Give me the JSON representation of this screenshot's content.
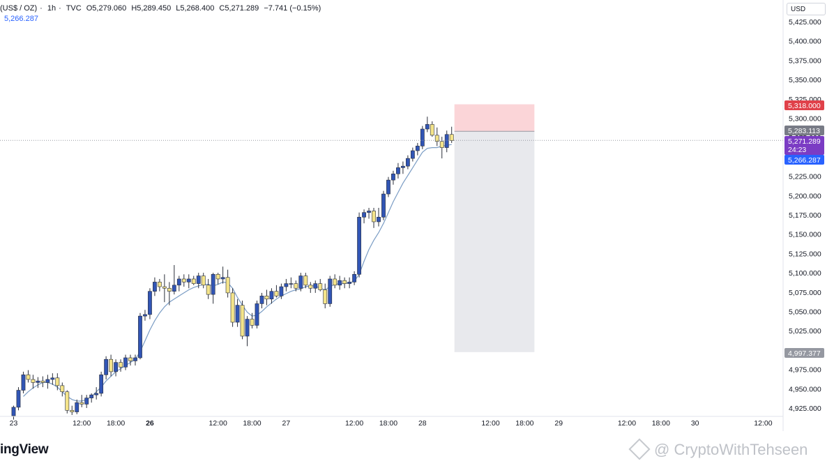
{
  "header": {
    "symbol": "(US$ / OZ)",
    "interval": "1h",
    "source": "TVC",
    "open": "O5,279.060",
    "high": "H5,289.450",
    "low": "L5,268.400",
    "close": "C5,271.289",
    "change": "−7.741 (−0.15%)",
    "ma_value": "5,266.287"
  },
  "currency_button": "USD",
  "brand": "ingView",
  "watermark": "@ CryptoWithTehseen",
  "price_labels": {
    "stop": "5,318.000",
    "entry": "5,283.113",
    "current": "5,271.289",
    "countdown": "24:23",
    "ma": "5,266.287",
    "target": "4,997.377"
  },
  "colors": {
    "up": "#3155b5",
    "down": "#f4e48a",
    "wick": "#2a2e39",
    "ma_line": "#7a9cc4",
    "stop_zone": "#fbd5d8",
    "target_zone": "#e8e9ed",
    "stop_label": "#e0414a",
    "entry_label": "#787b86",
    "current_label": "#7b3cc4",
    "ma_label": "#2962ff",
    "target_label": "#9598a1"
  },
  "chart_data": {
    "type": "candlestick",
    "y_axis": {
      "ticks": [
        4925,
        4950,
        4975,
        5000,
        5025,
        5050,
        5075,
        5100,
        5125,
        5150,
        5175,
        5200,
        5225,
        5250,
        5275,
        5300,
        5325,
        5350,
        5375,
        5400,
        5425
      ],
      "tick_labels": [
        "4,925.000",
        "4,950.000",
        "4,975.000",
        "5,000.000",
        "5,025.000",
        "5,050.000",
        "5,075.000",
        "5,100.000",
        "5,125.000",
        "5,150.000",
        "5,175.000",
        "5,200.000",
        "5,225.000",
        "5,250.000",
        "5,275.000",
        "5,300.000",
        "5,325.000",
        "5,350.000",
        "5,375.000",
        "5,400.000",
        "5,425.000"
      ],
      "range": [
        4912,
        5430
      ]
    },
    "x_axis": {
      "labels": [
        "23",
        "12:00",
        "18:00",
        "26",
        "12:00",
        "18:00",
        "27",
        "12:00",
        "18:00",
        "28",
        "12:00",
        "18:00",
        "29",
        "12:00",
        "18:00",
        "30",
        "12:00"
      ],
      "bold": [
        false,
        false,
        false,
        true,
        false,
        false,
        false,
        false,
        false,
        false,
        false,
        false,
        false,
        false,
        false,
        false,
        false
      ],
      "label_bar": [
        0,
        14,
        21,
        28,
        42,
        49,
        56,
        70,
        77,
        84,
        98,
        105,
        112,
        126,
        133,
        140,
        154
      ]
    },
    "candles": [
      [
        4915,
        4928,
        4910,
        4926
      ],
      [
        4926,
        4952,
        4922,
        4948
      ],
      [
        4948,
        4972,
        4944,
        4968
      ],
      [
        4968,
        4974,
        4958,
        4962
      ],
      [
        4962,
        4968,
        4950,
        4958
      ],
      [
        4958,
        4965,
        4951,
        4960
      ],
      [
        4960,
        4966,
        4952,
        4958
      ],
      [
        4958,
        4968,
        4950,
        4962
      ],
      [
        4962,
        4970,
        4955,
        4964
      ],
      [
        4964,
        4970,
        4948,
        4954
      ],
      [
        4954,
        4958,
        4940,
        4946
      ],
      [
        4946,
        4948,
        4918,
        4922
      ],
      [
        4922,
        4928,
        4916,
        4920
      ],
      [
        4920,
        4936,
        4917,
        4932
      ],
      [
        4932,
        4942,
        4926,
        4930
      ],
      [
        4930,
        4942,
        4925,
        4938
      ],
      [
        4938,
        4944,
        4932,
        4942
      ],
      [
        4942,
        4952,
        4936,
        4944
      ],
      [
        4944,
        4972,
        4940,
        4968
      ],
      [
        4968,
        4992,
        4962,
        4988
      ],
      [
        4988,
        4994,
        4966,
        4972
      ],
      [
        4972,
        4988,
        4966,
        4984
      ],
      [
        4984,
        4988,
        4972,
        4978
      ],
      [
        4978,
        4994,
        4974,
        4990
      ],
      [
        4990,
        4994,
        4980,
        4986
      ],
      [
        4986,
        4994,
        4980,
        4990
      ],
      [
        4990,
        5048,
        4988,
        5044
      ],
      [
        5044,
        5052,
        5038,
        5046
      ],
      [
        5046,
        5080,
        5040,
        5076
      ],
      [
        5076,
        5094,
        5070,
        5088
      ],
      [
        5088,
        5092,
        5076,
        5082
      ],
      [
        5082,
        5098,
        5062,
        5080
      ],
      [
        5080,
        5088,
        5058,
        5076
      ],
      [
        5076,
        5110,
        5072,
        5084
      ],
      [
        5084,
        5096,
        5076,
        5092
      ],
      [
        5092,
        5098,
        5082,
        5088
      ],
      [
        5088,
        5098,
        5080,
        5092
      ],
      [
        5092,
        5096,
        5084,
        5086
      ],
      [
        5086,
        5100,
        5080,
        5096
      ],
      [
        5096,
        5100,
        5080,
        5084
      ],
      [
        5084,
        5092,
        5066,
        5072
      ],
      [
        5072,
        5100,
        5060,
        5098
      ],
      [
        5098,
        5100,
        5085,
        5092
      ],
      [
        5092,
        5108,
        5086,
        5094
      ],
      [
        5094,
        5104,
        5068,
        5074
      ],
      [
        5074,
        5080,
        5030,
        5036
      ],
      [
        5036,
        5066,
        5030,
        5058
      ],
      [
        5058,
        5064,
        5014,
        5018
      ],
      [
        5018,
        5044,
        5005,
        5040
      ],
      [
        5040,
        5048,
        5028,
        5032
      ],
      [
        5032,
        5064,
        5028,
        5060
      ],
      [
        5060,
        5074,
        5054,
        5070
      ],
      [
        5070,
        5078,
        5058,
        5066
      ],
      [
        5066,
        5080,
        5060,
        5076
      ],
      [
        5076,
        5084,
        5068,
        5070
      ],
      [
        5070,
        5086,
        5066,
        5082
      ],
      [
        5082,
        5092,
        5076,
        5086
      ],
      [
        5086,
        5094,
        5080,
        5086
      ],
      [
        5086,
        5090,
        5076,
        5080
      ],
      [
        5080,
        5100,
        5076,
        5096
      ],
      [
        5096,
        5100,
        5080,
        5084
      ],
      [
        5084,
        5088,
        5074,
        5080
      ],
      [
        5080,
        5090,
        5074,
        5086
      ],
      [
        5086,
        5092,
        5076,
        5078
      ],
      [
        5078,
        5086,
        5054,
        5060
      ],
      [
        5060,
        5096,
        5056,
        5092
      ],
      [
        5092,
        5098,
        5080,
        5084
      ],
      [
        5084,
        5096,
        5078,
        5090
      ],
      [
        5090,
        5094,
        5080,
        5086
      ],
      [
        5086,
        5094,
        5080,
        5088
      ],
      [
        5088,
        5102,
        5084,
        5098
      ],
      [
        5098,
        5178,
        5094,
        5172
      ],
      [
        5172,
        5182,
        5164,
        5178
      ],
      [
        5178,
        5184,
        5170,
        5180
      ],
      [
        5180,
        5184,
        5158,
        5166
      ],
      [
        5166,
        5184,
        5160,
        5172
      ],
      [
        5172,
        5206,
        5168,
        5202
      ],
      [
        5202,
        5224,
        5198,
        5220
      ],
      [
        5220,
        5232,
        5214,
        5228
      ],
      [
        5228,
        5242,
        5222,
        5236
      ],
      [
        5236,
        5244,
        5228,
        5238
      ],
      [
        5238,
        5252,
        5234,
        5248
      ],
      [
        5248,
        5262,
        5244,
        5258
      ],
      [
        5258,
        5268,
        5252,
        5264
      ],
      [
        5264,
        5290,
        5260,
        5286
      ],
      [
        5286,
        5302,
        5282,
        5292
      ],
      [
        5292,
        5296,
        5276,
        5278
      ],
      [
        5278,
        5288,
        5264,
        5270
      ],
      [
        5270,
        5276,
        5248,
        5262
      ],
      [
        5262,
        5284,
        5256,
        5279
      ],
      [
        5279,
        5289,
        5268,
        5271
      ]
    ],
    "moving_average": {
      "bar_start": 2,
      "values": [
        4940,
        4946,
        4951,
        4955,
        4958,
        4958,
        4956,
        4952,
        4946,
        4940,
        4936,
        4934,
        4934,
        4936,
        4940,
        4946,
        4952,
        4960,
        4966,
        4972,
        4976,
        4980,
        4984,
        4988,
        4998,
        5012,
        5026,
        5038,
        5048,
        5056,
        5062,
        5066,
        5070,
        5074,
        5078,
        5081,
        5083,
        5085,
        5085,
        5083,
        5085,
        5088,
        5087,
        5080,
        5068,
        5058,
        5049,
        5044,
        5045,
        5050,
        5056,
        5061,
        5066,
        5070,
        5073,
        5076,
        5078,
        5079,
        5082,
        5083,
        5083,
        5080,
        5078,
        5082,
        5085,
        5086,
        5086,
        5087,
        5089,
        5098,
        5115,
        5130,
        5142,
        5152,
        5164,
        5178,
        5192,
        5204,
        5216,
        5226,
        5236,
        5246,
        5256,
        5261,
        5262,
        5262,
        5264,
        5265,
        5266
      ]
    },
    "position": {
      "start_bar": 91,
      "end_bar": 107,
      "entry": 5283.113,
      "stop": 5318.0,
      "target": 4997.377
    },
    "current_price": 5271.289
  }
}
